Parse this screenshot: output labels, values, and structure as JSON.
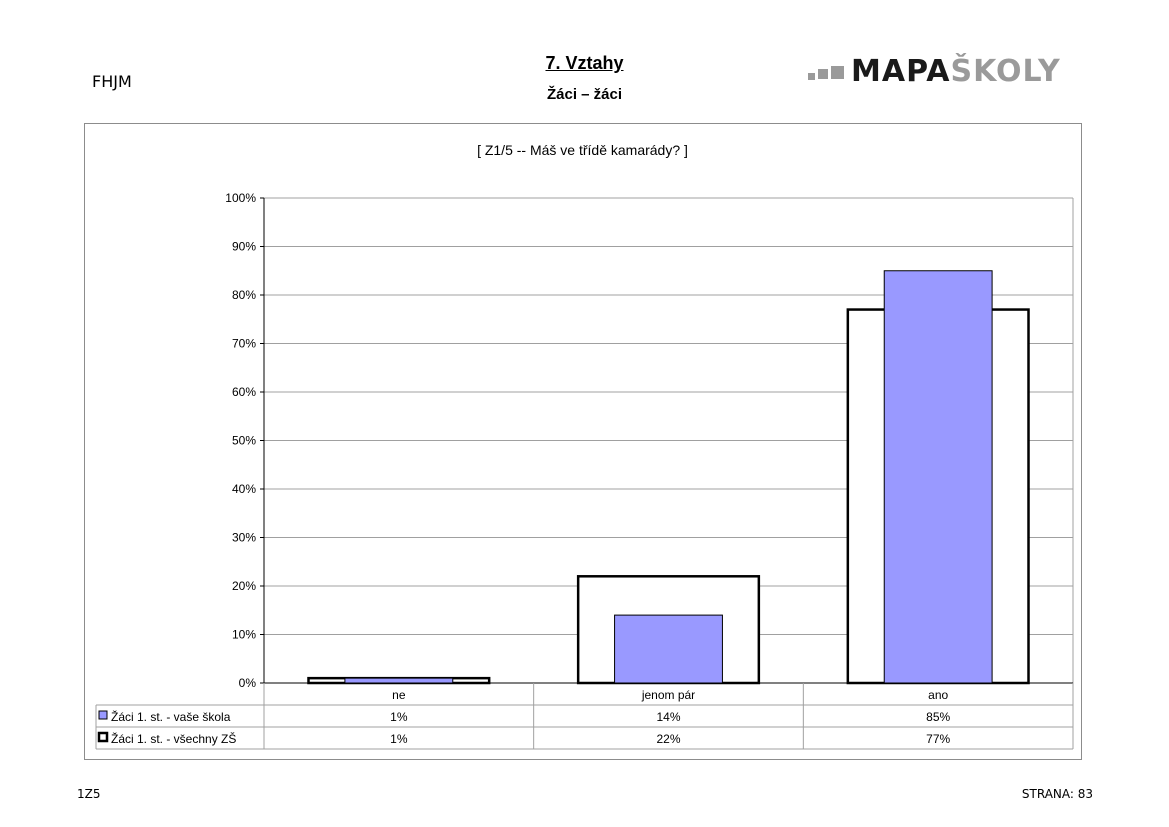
{
  "header": {
    "school": "FHJM",
    "title": "7. Vztahy",
    "subtitle": "Žáci – žáci",
    "logo_part1": "MAPA",
    "logo_part2": "ŠKOLY"
  },
  "footer": {
    "code": "1Z5",
    "page": "STRANA: 83"
  },
  "colors": {
    "series1_fill": "#9999ff",
    "series2_fill": "#ffffff",
    "bar_stroke": "#000000",
    "grid": "#a0a0a0"
  },
  "chart_data": {
    "type": "bar",
    "title": "[ Z1/5 -- Máš ve třídě kamarády? ]",
    "categories": [
      "ne",
      "jenom pár",
      "ano"
    ],
    "series": [
      {
        "name": "Žáci 1. st. - vaše škola",
        "values": [
          1,
          14,
          85
        ],
        "labels": [
          "1%",
          "14%",
          "85%"
        ]
      },
      {
        "name": "Žáci 1. st. - všechny ZŠ",
        "values": [
          1,
          22,
          77
        ],
        "labels": [
          "1%",
          "22%",
          "77%"
        ]
      }
    ],
    "ylim": [
      0,
      100
    ],
    "yticks": [
      "0%",
      "10%",
      "20%",
      "30%",
      "40%",
      "50%",
      "60%",
      "70%",
      "80%",
      "90%",
      "100%"
    ],
    "grid": true,
    "legend": "data table below chart"
  }
}
